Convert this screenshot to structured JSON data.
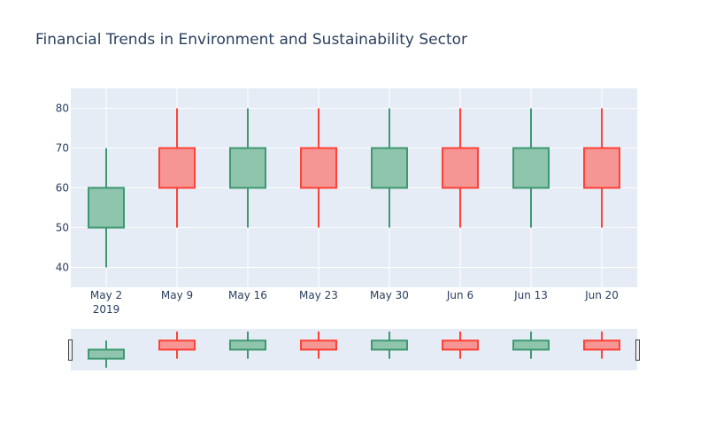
{
  "chart_data": {
    "type": "candlestick",
    "title": "Financial Trends in Environment and Sustainability Sector",
    "x": [
      "May 2",
      "May 9",
      "May 16",
      "May 23",
      "May 30",
      "Jun 6",
      "Jun 13",
      "Jun 20"
    ],
    "x_year_label": "2019",
    "open": [
      50,
      70,
      60,
      70,
      60,
      70,
      60,
      70
    ],
    "high": [
      70,
      80,
      80,
      80,
      80,
      80,
      80,
      80
    ],
    "low": [
      40,
      50,
      50,
      50,
      50,
      50,
      50,
      50
    ],
    "close": [
      60,
      60,
      70,
      60,
      70,
      60,
      70,
      60
    ],
    "ylim": [
      35,
      85
    ],
    "yticks": [
      40,
      50,
      60,
      70,
      80
    ],
    "grid": true,
    "legend": "none",
    "rangeslider": true,
    "colors": {
      "increasing_line": "#3d9970",
      "increasing_fill": "#8fc4ad",
      "decreasing_line": "#ff4136",
      "decreasing_fill": "#f59694",
      "plot_bg": "#e5ecf6",
      "grid": "#ffffff",
      "text": "#2a3f5f"
    }
  }
}
